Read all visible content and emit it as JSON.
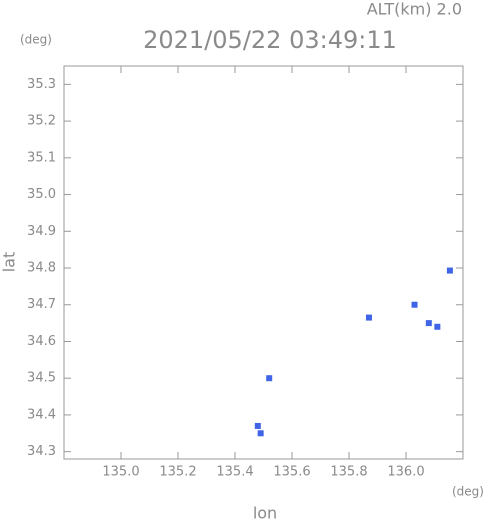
{
  "chart_data": {
    "type": "scatter",
    "title": "2021/05/22 03:49:11",
    "subtitle": "ALT(km) 2.0",
    "y_unit": "(deg)",
    "x_unit": "(deg)",
    "ylabel": "lat",
    "xlabel": "lon",
    "x": [
      136.154,
      136.03,
      136.08,
      136.11,
      135.87,
      135.52,
      135.49,
      135.48
    ],
    "values": [
      34.793,
      34.7,
      34.65,
      34.64,
      34.665,
      34.5,
      34.35,
      34.37
    ],
    "color": "#3f64e6",
    "xlim": [
      134.8,
      136.2
    ],
    "xticks": [
      {
        "value": 135,
        "label": "135.0"
      },
      135.2,
      135.4,
      135.6,
      135.8,
      {
        "value": 136,
        "label": "136.0"
      }
    ],
    "ylim": [
      34.28,
      35.35
    ],
    "yticks": [
      34.3,
      34.4,
      34.5,
      34.6,
      34.7,
      34.8,
      34.9,
      {
        "value": 35,
        "label": "35.0"
      },
      35.1,
      35.2,
      35.3
    ]
  }
}
